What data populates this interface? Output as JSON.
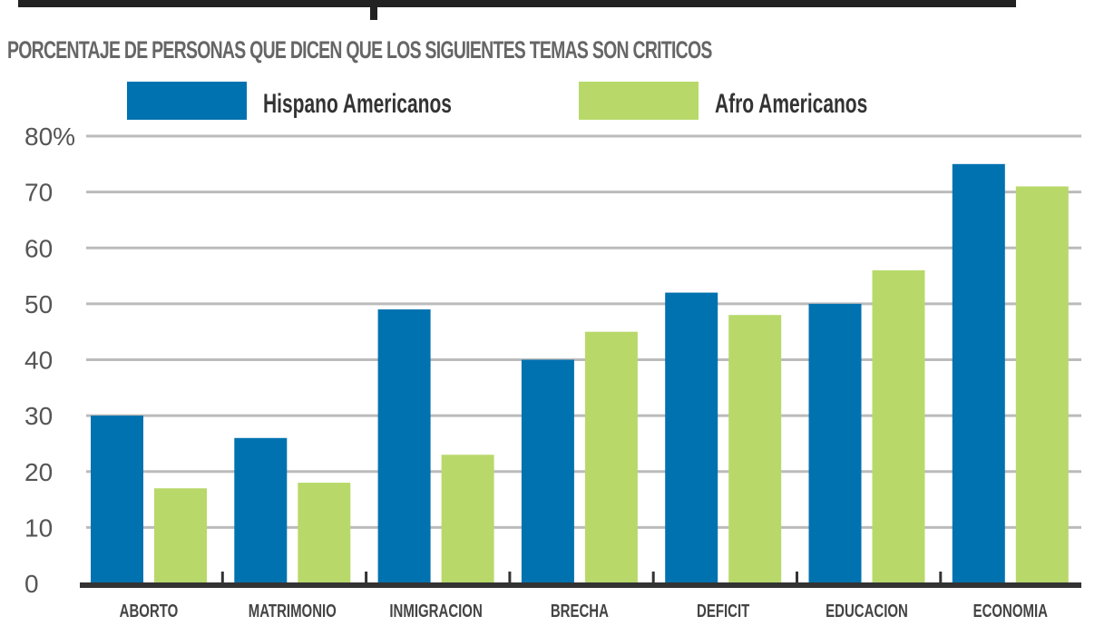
{
  "chart_data": {
    "type": "bar",
    "subtitle": "PORCENTAJE DE PERSONAS QUE DICEN QUE LOS SIGUIENTES TEMAS SON CRITICOS",
    "categories": [
      "ABORTO",
      "MATRIMONIO",
      "INMIGRACION",
      "BRECHA",
      "DEFICIT",
      "EDUCACION",
      "ECONOMIA"
    ],
    "series": [
      {
        "name": "Hispano Americanos",
        "color": "#0072b0",
        "values": [
          30,
          26,
          49,
          40,
          52,
          50,
          75
        ]
      },
      {
        "name": "Afro Americanos",
        "color": "#b8d96a",
        "values": [
          17,
          18,
          23,
          45,
          48,
          56,
          71
        ]
      }
    ],
    "yticks": [
      "0",
      "10",
      "20",
      "30",
      "40",
      "50",
      "60",
      "70",
      "80%"
    ],
    "ylim": [
      0,
      80
    ],
    "grid": true,
    "legend": "top-center"
  }
}
